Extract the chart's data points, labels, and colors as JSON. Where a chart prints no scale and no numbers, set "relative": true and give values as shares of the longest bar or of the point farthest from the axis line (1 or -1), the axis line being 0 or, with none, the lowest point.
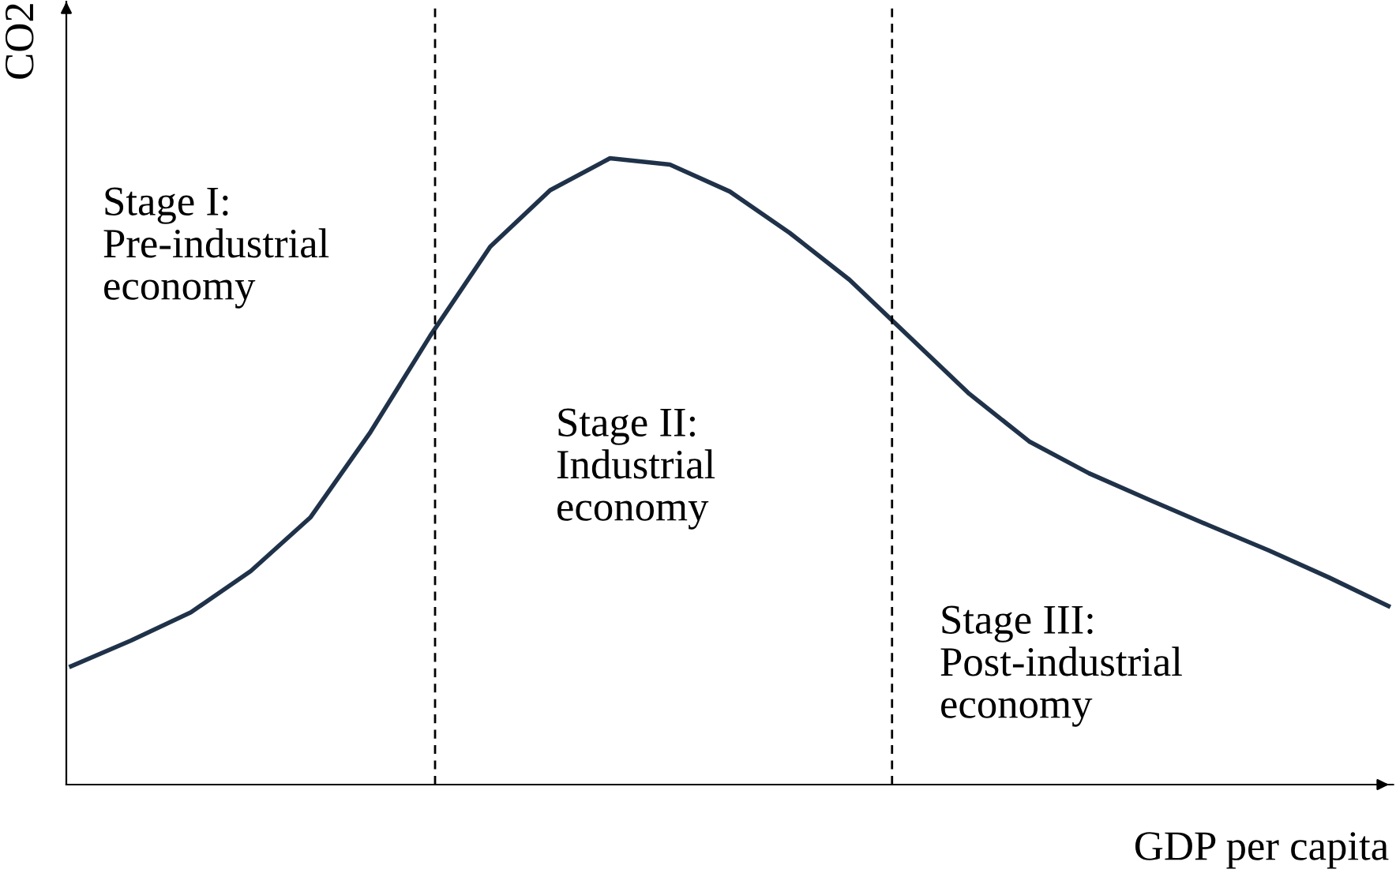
{
  "chart_data": {
    "type": "line",
    "relative": true,
    "xlabel": "GDP per capita",
    "ylabel": "CO2",
    "categories": [
      null,
      null,
      null,
      null,
      null,
      null,
      null,
      null,
      null,
      null,
      null,
      null,
      null,
      null,
      null,
      null,
      null,
      null,
      null,
      null,
      null,
      null,
      null
    ],
    "series": [
      {
        "color": "#1f3249",
        "values": [
          0.189,
          0.23,
          0.275,
          0.341,
          0.427,
          0.563,
          0.717,
          0.859,
          0.949,
          1.0,
          0.99,
          0.947,
          0.881,
          0.806,
          0.715,
          0.624,
          0.548,
          0.497,
          0.455,
          0.414,
          0.374,
          0.331,
          0.285
        ]
      }
    ],
    "annotations": [
      "Stage I:\nPre-industrial\neconomy",
      "Stage II:\nIndustrial\neconomy",
      "Stage III:\nPost-industrial\neconomy"
    ],
    "grid": false,
    "legend": false
  }
}
